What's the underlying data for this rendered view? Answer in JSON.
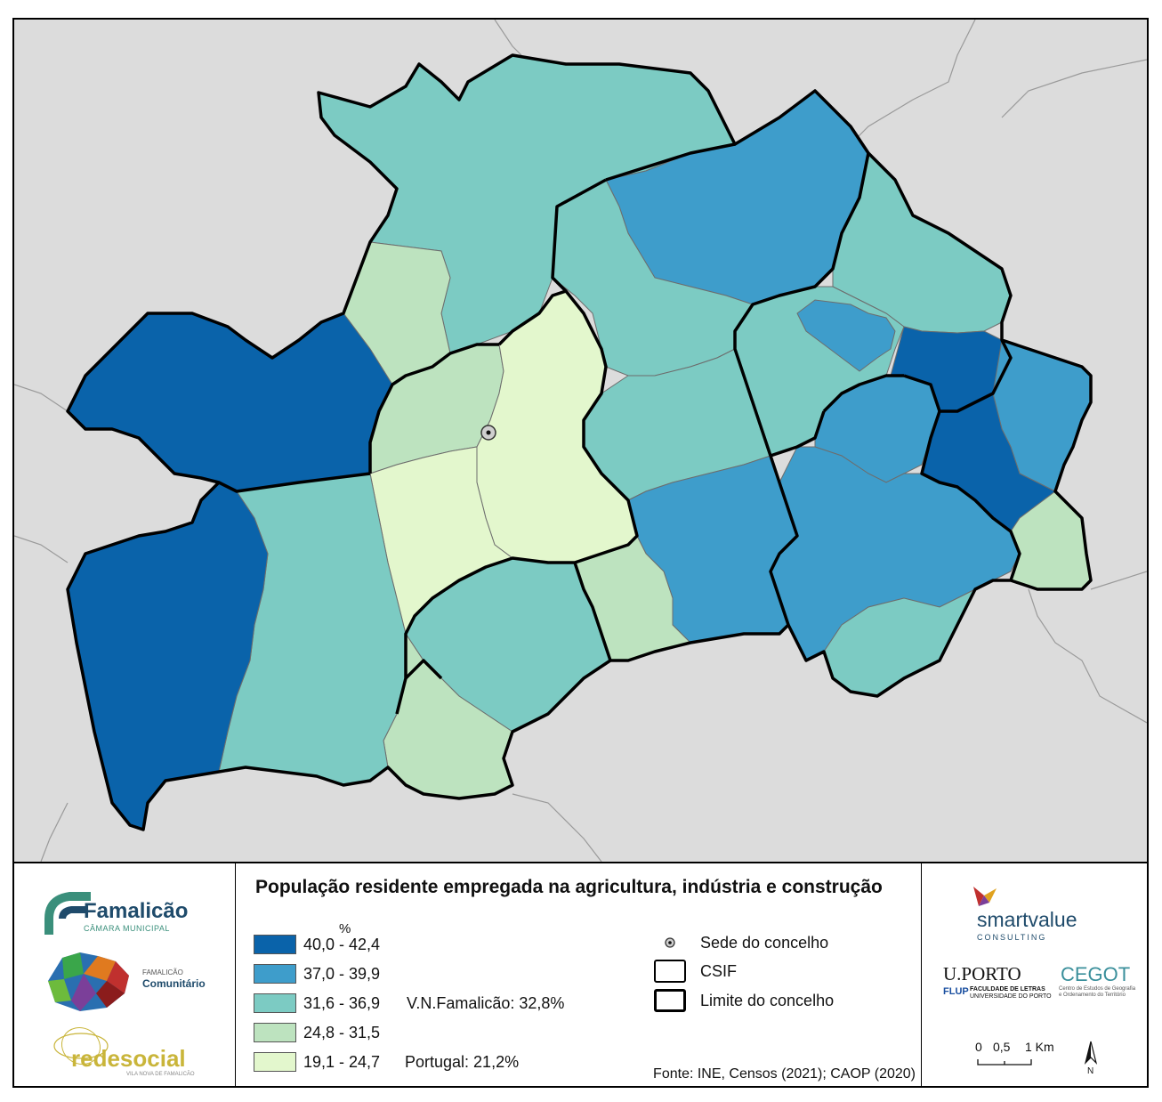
{
  "legend": {
    "title": "População residente empregada na agricultura, indústria e construção",
    "unit": "%",
    "classes": [
      {
        "label": "40,0 - 42,4",
        "color": "#0a63aa"
      },
      {
        "label": "37,0 - 39,9",
        "color": "#3e9dcb"
      },
      {
        "label": "31,6 - 36,9",
        "color": "#7ccbc3"
      },
      {
        "label": "24,8 - 31,5",
        "color": "#bde3bf"
      },
      {
        "label": "19,1 - 24,7",
        "color": "#e3f7cd"
      }
    ],
    "stats": {
      "municipality": "V.N.Famalicão: 32,8%",
      "country": "Portugal: 21,2%"
    },
    "symbols": {
      "seat": "Sede do concelho",
      "csif": "CSIF",
      "boundary": "Limite do concelho"
    },
    "source": "Fonte: INE, Censos (2021); CAOP (2020)"
  },
  "scale_bar": {
    "ticks": [
      "0",
      "0,5",
      "1 Km"
    ],
    "north": "N"
  },
  "logos": {
    "famalicao": {
      "name": "Famalicão",
      "sub": "CÂMARA MUNICIPAL"
    },
    "comunitario": {
      "line1": "FAMALICÃO",
      "line2": "Comunitário"
    },
    "redesocial": {
      "name": "redesocial",
      "sub": "VILA NOVA DE FAMALICÃO"
    },
    "smartvalue": {
      "name": "smartvalue",
      "sub": "CONSULTING"
    },
    "uporto": {
      "name": "U.PORTO",
      "flup": "FLUP",
      "sub1": "FACULDADE DE LETRAS",
      "sub2": "UNIVERSIDADE DO PORTO"
    },
    "cegot": {
      "name": "CEGOT",
      "sub1": "Centro de Estudos de Geografia",
      "sub2": "e Ordenamento do Território"
    }
  }
}
